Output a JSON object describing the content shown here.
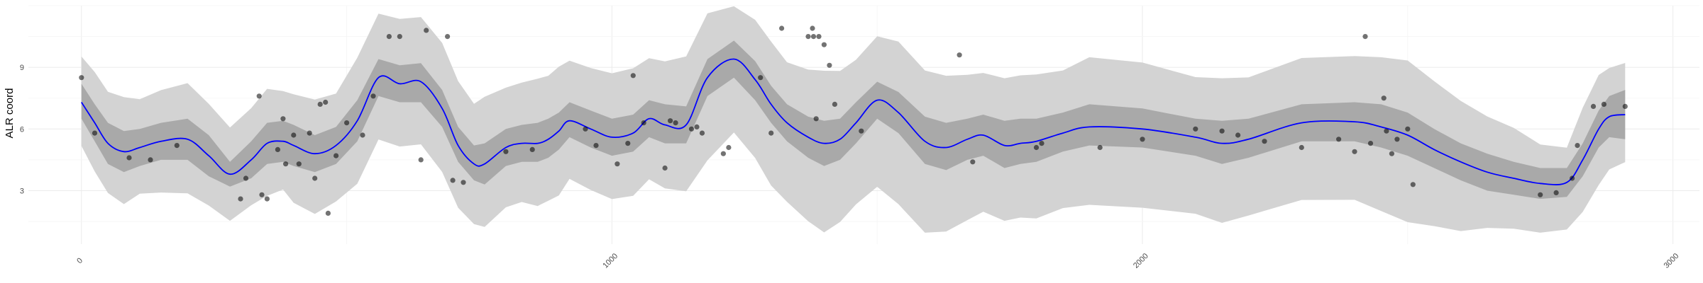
{
  "chart_data": {
    "type": "line",
    "title": "",
    "xlabel": "",
    "ylabel": "ALR coord",
    "xlim": [
      -100,
      3050
    ],
    "ylim": [
      0.4,
      12.0
    ],
    "x_ticks": [
      0,
      1000,
      2000,
      3000
    ],
    "x_tick_labels": [
      "0",
      "1000",
      "2000",
      "3000"
    ],
    "y_ticks": [
      3,
      6,
      9
    ],
    "y_tick_labels": [
      "3",
      "6",
      "9"
    ],
    "grid": true,
    "legend": "none",
    "colors": {
      "mean_line": "#0000ff",
      "inner_band": "#a9a9a9",
      "outer_band": "#d3d3d3",
      "points": "#000000",
      "grid": "#ebebeb"
    },
    "series": [
      {
        "role": "fitted-mean",
        "x": [
          0,
          25,
          50,
          80,
          110,
          150,
          200,
          240,
          280,
          320,
          350,
          380,
          400,
          440,
          480,
          520,
          560,
          600,
          640,
          680,
          710,
          740,
          760,
          800,
          830,
          860,
          880,
          900,
          920,
          960,
          1000,
          1040,
          1070,
          1100,
          1140,
          1180,
          1230,
          1270,
          1300,
          1330,
          1370,
          1400,
          1430,
          1460,
          1500,
          1540,
          1590,
          1630,
          1670,
          1700,
          1740,
          1770,
          1800,
          1850,
          1900,
          2000,
          2100,
          2150,
          2200,
          2300,
          2400,
          2450,
          2500,
          2550,
          2600,
          2650,
          2700,
          2750,
          2800,
          2830,
          2860,
          2880,
          2910
        ],
        "y": [
          7.3,
          6.3,
          5.3,
          4.9,
          5.1,
          5.4,
          5.5,
          4.7,
          3.8,
          4.5,
          5.3,
          5.4,
          5.2,
          4.8,
          5.2,
          6.4,
          8.5,
          8.2,
          8.3,
          7.0,
          5.2,
          4.3,
          4.3,
          5.1,
          5.3,
          5.3,
          5.5,
          5.9,
          6.4,
          6.0,
          5.6,
          5.8,
          6.5,
          6.2,
          6.2,
          8.5,
          9.4,
          8.4,
          7.2,
          6.3,
          5.6,
          5.3,
          5.5,
          6.3,
          7.4,
          6.8,
          5.4,
          5.1,
          5.5,
          5.7,
          5.2,
          5.3,
          5.4,
          5.8,
          6.1,
          6.0,
          5.6,
          5.3,
          5.5,
          6.3,
          6.35,
          6.1,
          5.7,
          5.0,
          4.4,
          3.9,
          3.6,
          3.35,
          3.4,
          4.5,
          6.0,
          6.6,
          6.7
        ],
        "inner_band_lower": [
          6.5,
          5.4,
          4.3,
          3.9,
          4.2,
          4.5,
          4.5,
          3.7,
          3.2,
          3.6,
          4.3,
          4.4,
          4.2,
          3.9,
          4.3,
          5.4,
          7.6,
          7.3,
          7.3,
          6.1,
          4.4,
          3.5,
          3.3,
          4.2,
          4.4,
          4.4,
          4.6,
          5.0,
          5.6,
          5.1,
          4.7,
          4.9,
          5.6,
          5.3,
          5.3,
          7.6,
          8.5,
          7.4,
          6.3,
          5.4,
          4.6,
          4.2,
          4.5,
          5.3,
          6.5,
          5.8,
          4.3,
          4.0,
          4.5,
          4.7,
          4.1,
          4.3,
          4.4,
          4.9,
          5.2,
          5.1,
          4.7,
          4.3,
          4.6,
          5.4,
          5.4,
          5.1,
          4.7,
          4.1,
          3.5,
          3.0,
          2.8,
          2.6,
          2.7,
          3.7,
          5.1,
          5.6,
          5.5
        ],
        "inner_band_upper": [
          8.2,
          7.2,
          6.3,
          5.9,
          6.0,
          6.3,
          6.5,
          5.7,
          4.4,
          5.4,
          6.3,
          6.4,
          6.2,
          5.7,
          6.1,
          7.4,
          9.4,
          9.1,
          9.2,
          7.9,
          6.1,
          5.2,
          5.3,
          6.0,
          6.2,
          6.3,
          6.5,
          6.8,
          7.3,
          6.9,
          6.5,
          6.7,
          7.4,
          7.2,
          7.1,
          9.4,
          10.3,
          9.3,
          8.1,
          7.2,
          6.6,
          6.4,
          6.5,
          7.3,
          8.3,
          7.8,
          6.6,
          6.3,
          6.5,
          6.7,
          6.4,
          6.5,
          6.5,
          6.8,
          7.2,
          7.0,
          6.5,
          6.4,
          6.5,
          7.2,
          7.3,
          7.2,
          6.8,
          6.0,
          5.3,
          4.8,
          4.4,
          4.1,
          4.1,
          5.3,
          6.9,
          7.6,
          7.9
        ],
        "outer_band_lower": [
          5.1,
          3.9,
          2.9,
          2.4,
          2.8,
          2.9,
          2.9,
          2.2,
          1.5,
          2.3,
          2.8,
          3.0,
          2.4,
          1.9,
          2.4,
          3.3,
          5.5,
          5.2,
          5.2,
          3.9,
          2.2,
          1.3,
          1.2,
          2.2,
          2.5,
          2.2,
          2.5,
          2.8,
          3.5,
          3.0,
          2.6,
          2.8,
          3.5,
          3.1,
          3.0,
          4.4,
          5.8,
          4.6,
          3.3,
          2.4,
          1.5,
          1.0,
          1.4,
          2.3,
          3.2,
          2.4,
          0.9,
          1.0,
          1.6,
          1.9,
          1.5,
          1.7,
          1.7,
          2.1,
          2.3,
          2.2,
          1.8,
          1.4,
          1.8,
          2.6,
          2.5,
          2.0,
          1.5,
          1.2,
          1.0,
          1.2,
          1.2,
          0.9,
          1.1,
          2.0,
          3.2,
          4.0,
          4.4
        ],
        "outer_band_upper": [
          9.6,
          8.8,
          7.8,
          7.5,
          7.5,
          7.9,
          8.2,
          7.3,
          6.1,
          7.0,
          7.9,
          7.9,
          7.7,
          7.4,
          7.8,
          9.5,
          11.6,
          11.3,
          11.5,
          10.2,
          8.3,
          7.3,
          7.6,
          8.0,
          8.2,
          8.5,
          8.6,
          9.0,
          9.4,
          9.0,
          8.7,
          8.9,
          9.5,
          9.3,
          9.5,
          11.7,
          12.0,
          11.3,
          10.2,
          9.3,
          8.9,
          8.8,
          8.9,
          9.4,
          10.5,
          10.2,
          8.9,
          8.6,
          8.6,
          8.8,
          8.5,
          8.6,
          8.6,
          8.9,
          9.5,
          9.2,
          8.6,
          8.5,
          8.5,
          9.4,
          9.6,
          9.5,
          9.3,
          8.4,
          7.4,
          6.6,
          6.0,
          5.3,
          5.1,
          7.0,
          8.7,
          9.0,
          9.2
        ]
      },
      {
        "role": "observations",
        "x": [
          0,
          25,
          90,
          130,
          180,
          300,
          310,
          335,
          340,
          350,
          370,
          380,
          385,
          400,
          410,
          430,
          440,
          450,
          460,
          465,
          480,
          500,
          530,
          550,
          580,
          600,
          640,
          650,
          690,
          700,
          720,
          800,
          850,
          950,
          970,
          1010,
          1030,
          1040,
          1060,
          1100,
          1110,
          1120,
          1150,
          1160,
          1170,
          1210,
          1220,
          1280,
          1300,
          1320,
          1370,
          1378,
          1380,
          1385,
          1390,
          1400,
          1410,
          1420,
          1470,
          1655,
          1680,
          1800,
          1810,
          1920,
          2000,
          2100,
          2150,
          2180,
          2230,
          2300,
          2370,
          2400,
          2420,
          2430,
          2455,
          2460,
          2470,
          2480,
          2500,
          2510,
          2750,
          2780,
          2810,
          2820,
          2850,
          2870,
          2910
        ],
        "y": [
          8.5,
          5.8,
          4.6,
          4.5,
          5.2,
          2.6,
          3.6,
          7.6,
          2.8,
          2.6,
          5.0,
          6.5,
          4.3,
          5.7,
          4.3,
          5.8,
          3.6,
          7.2,
          7.3,
          1.9,
          4.7,
          6.3,
          5.7,
          7.6,
          10.5,
          10.5,
          4.5,
          10.8,
          10.5,
          3.5,
          3.4,
          4.9,
          5.0,
          6.0,
          5.2,
          4.3,
          5.3,
          8.6,
          6.3,
          4.1,
          6.4,
          6.3,
          6.0,
          6.1,
          5.8,
          4.8,
          5.1,
          8.5,
          5.8,
          10.9,
          10.5,
          10.9,
          10.5,
          6.5,
          10.5,
          10.1,
          9.1,
          7.2,
          5.9,
          9.6,
          4.4,
          5.1,
          5.3,
          5.1,
          5.5,
          6.0,
          5.9,
          5.7,
          5.4,
          5.1,
          5.5,
          4.9,
          10.5,
          5.3,
          7.5,
          5.9,
          4.8,
          5.5,
          6.0,
          3.3,
          2.8,
          2.9,
          3.6,
          5.2,
          7.1,
          7.2,
          7.1
        ]
      }
    ]
  }
}
